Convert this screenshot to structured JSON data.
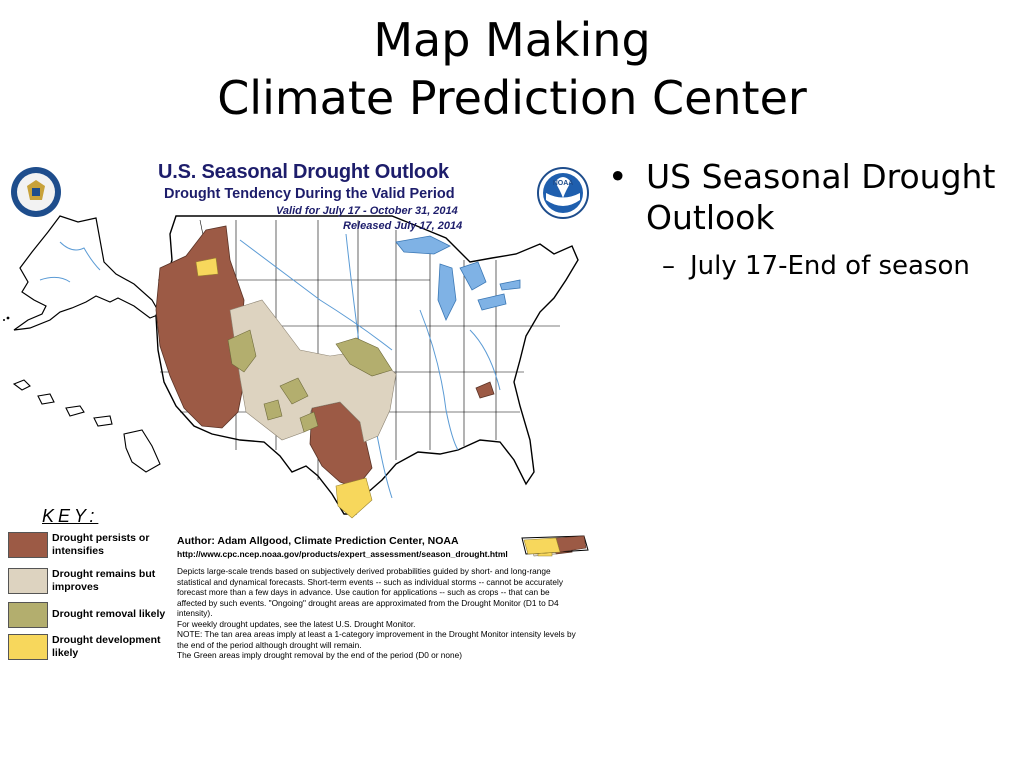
{
  "slide": {
    "title_line1": "Map Making",
    "title_line2": "Climate Prediction Center"
  },
  "figure": {
    "title": "U.S. Seasonal Drought Outlook",
    "subtitle": "Drought Tendency During the Valid Period",
    "valid": "Valid for July 17 - October 31, 2014",
    "released": "Released July 17, 2014",
    "key_title": "KEY:",
    "key": [
      {
        "label": "Drought persists or intensifies",
        "color": "#9c5a45"
      },
      {
        "label": "Drought remains but improves",
        "color": "#ddd3c0"
      },
      {
        "label": "Drought removal likely",
        "color": "#b3ae6e"
      },
      {
        "label": "Drought development likely",
        "color": "#f7d75c"
      }
    ],
    "author": "Author: Adam Allgood, Climate Prediction Center, NOAA",
    "url": "http://www.cpc.ncep.noaa.gov/products/expert_assessment/season_drought.html",
    "notes": [
      "Depicts large-scale trends based on subjectively derived probabilities guided by short- and long-range statistical and dynamical forecasts. Short-term events -- such as individual storms -- cannot be accurately forecast more than a few days in advance. Use caution for applications -- such as crops -- that can be affected by such events. \"Ongoing\" drought areas are approximated from the Drought Monitor (D1 to D4 intensity).",
      "For weekly drought updates, see the latest U.S. Drought Monitor.",
      "NOTE: The tan area areas imply at least a 1-category improvement in the Drought Monitor intensity levels by the end of the period although drought will remain.",
      "The Green areas imply drought removal by the end of the period (D0 or none)"
    ],
    "left_logo": "commerce-department-seal",
    "right_logo": "noaa-logo",
    "noaa_text": "NOAA"
  },
  "bullets": {
    "main": "US Seasonal Drought Outlook",
    "sub": "July 17-End of season"
  }
}
